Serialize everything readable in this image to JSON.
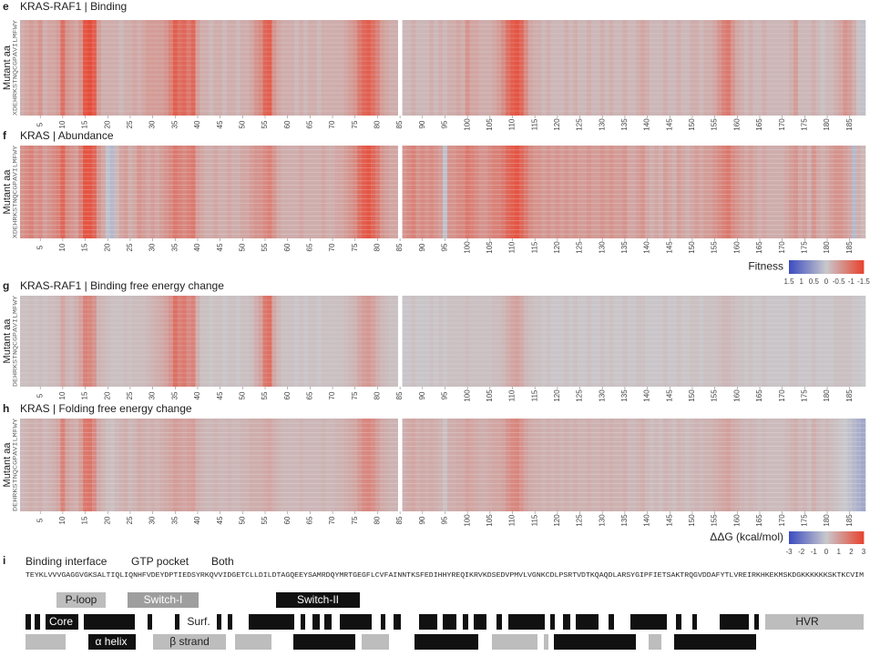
{
  "chart_data": [
    {
      "type": "heatmap",
      "label": "e",
      "title": "KRAS-RAF1 | Binding",
      "ylabel": "Mutant aa",
      "yorder": "XDEHRKSTNQCGPAVILMFWY",
      "xlim": [
        0.5,
        188.5
      ],
      "xticks": [
        5,
        10,
        15,
        20,
        25,
        30,
        35,
        40,
        45,
        50,
        55,
        60,
        65,
        70,
        75,
        80,
        85,
        90,
        95,
        100,
        105,
        110,
        115,
        120,
        125,
        130,
        135,
        140,
        145,
        150,
        155,
        160,
        165,
        170,
        175,
        180,
        185
      ],
      "clim": [
        1.5,
        -1.5
      ],
      "colors": [
        "#3b4cc0",
        "#c8c8cc",
        "#e8432e"
      ],
      "values": [
        -0.3,
        -0.4,
        -0.5,
        -0.4,
        -0.6,
        -0.3,
        -0.4,
        -0.4,
        -0.5,
        -1.0,
        -0.6,
        -0.5,
        -0.4,
        -0.6,
        -1.3,
        -1.4,
        -1.2,
        -0.5,
        -0.3,
        -0.3,
        -0.3,
        -0.3,
        -0.2,
        -0.3,
        -0.3,
        -0.4,
        -0.3,
        -0.4,
        -0.5,
        -0.5,
        -0.5,
        -0.5,
        -0.6,
        -0.8,
        -1.2,
        -1.0,
        -1.1,
        -0.9,
        -1.1,
        -0.5,
        -0.3,
        -0.3,
        -0.2,
        -0.3,
        -0.3,
        -0.2,
        -0.3,
        -0.3,
        -0.2,
        -0.3,
        -0.3,
        -0.4,
        -0.6,
        -0.7,
        -1.1,
        -1.2,
        -0.6,
        -0.4,
        -0.3,
        -0.3,
        -0.3,
        -0.2,
        -0.3,
        -0.2,
        -0.3,
        -0.3,
        -0.2,
        -0.3,
        -0.3,
        -0.3,
        -0.3,
        -0.3,
        -0.4,
        -0.5,
        -0.6,
        -0.9,
        -1.1,
        -1.2,
        -1.0,
        -0.8,
        -0.5,
        -0.4,
        -0.3,
        -0.3,
        null,
        -0.2,
        -0.2,
        -0.3,
        -0.2,
        -0.2,
        -0.2,
        -0.3,
        -0.2,
        -0.3,
        -0.2,
        -0.3,
        -0.3,
        -0.4,
        -0.3,
        -0.6,
        -0.4,
        -0.4,
        -0.3,
        -0.3,
        -0.3,
        -0.4,
        -0.5,
        -0.7,
        -1.0,
        -1.2,
        -1.3,
        -1.1,
        -0.7,
        -0.4,
        -0.3,
        -0.3,
        -0.2,
        -0.3,
        -0.2,
        -0.2,
        -0.2,
        -0.3,
        -0.2,
        -0.3,
        -0.2,
        -0.2,
        -0.3,
        -0.2,
        -0.2,
        -0.3,
        -0.2,
        -0.3,
        -0.2,
        -0.2,
        -0.3,
        -0.2,
        -0.2,
        -0.3,
        -0.4,
        -0.3,
        -0.2,
        -0.2,
        -0.2,
        -0.3,
        -0.2,
        -0.2,
        -0.3,
        -0.2,
        -0.2,
        -0.3,
        -0.3,
        -0.2,
        -0.3,
        -0.3,
        -0.4,
        -0.6,
        -0.8,
        -0.9,
        -0.6,
        -0.4,
        -0.3,
        -0.2,
        -0.3,
        -0.2,
        -0.2,
        -0.3,
        -0.2,
        -0.2,
        -0.2,
        -0.2,
        -0.2,
        -0.3,
        -0.5,
        -0.2,
        -0.2,
        -0.2,
        -0.3,
        -0.2,
        -0.1,
        -0.2,
        -0.2,
        -0.3,
        -0.4,
        -0.6,
        -0.5,
        -0.3,
        -0.1,
        0.1
      ]
    },
    {
      "type": "heatmap",
      "label": "f",
      "title": "KRAS | Abundance",
      "ylabel": "Mutant aa",
      "yorder": "XDEHRKSTNQCGPAVILMFWY",
      "xlim": [
        0.5,
        188.5
      ],
      "xticks": [
        5,
        10,
        15,
        20,
        25,
        30,
        35,
        40,
        45,
        50,
        55,
        60,
        65,
        70,
        75,
        80,
        85,
        90,
        95,
        100,
        105,
        110,
        115,
        120,
        125,
        130,
        135,
        140,
        145,
        150,
        155,
        160,
        165,
        170,
        175,
        180,
        185
      ],
      "clim": [
        1.5,
        -1.5
      ],
      "colors": [
        "#3b4cc0",
        "#c8c8cc",
        "#e8432e"
      ],
      "colorbar": {
        "label": "Fitness",
        "ticks": [
          1.5,
          1,
          0.5,
          0,
          -0.5,
          -1,
          -1.5
        ]
      },
      "values": [
        -0.6,
        -0.7,
        -0.8,
        -0.6,
        -0.7,
        -0.5,
        -0.6,
        -0.7,
        -0.8,
        -1.1,
        -0.7,
        -0.6,
        -0.5,
        -0.8,
        -1.3,
        -1.3,
        -1.1,
        -0.6,
        -0.4,
        0.1,
        0.2,
        -0.2,
        -0.4,
        -0.5,
        -0.3,
        -0.4,
        -0.6,
        -0.5,
        -0.4,
        -0.5,
        -0.4,
        -0.5,
        -0.6,
        -0.7,
        -0.9,
        -0.8,
        -0.7,
        -0.8,
        -0.9,
        -0.5,
        -0.4,
        -0.3,
        -0.3,
        -0.4,
        -0.3,
        -0.3,
        -0.4,
        -0.3,
        -0.3,
        -0.4,
        -0.4,
        -0.5,
        -0.6,
        -0.6,
        -0.7,
        -0.8,
        -0.6,
        -0.4,
        -0.3,
        -0.3,
        -0.3,
        -0.3,
        -0.4,
        -0.3,
        -0.3,
        -0.3,
        -0.3,
        -0.4,
        -0.3,
        -0.3,
        -0.4,
        -0.4,
        -0.5,
        -0.6,
        -0.7,
        -1.0,
        -1.2,
        -1.3,
        -1.1,
        -0.9,
        -0.6,
        -0.5,
        -0.4,
        -0.4,
        null,
        -0.6,
        -0.7,
        -0.8,
        -0.6,
        -0.7,
        -0.6,
        -0.7,
        -0.6,
        -0.5,
        0.1,
        -0.6,
        -0.6,
        -0.7,
        -0.7,
        -0.9,
        -0.8,
        -0.7,
        -0.6,
        -0.6,
        -0.7,
        -0.8,
        -0.8,
        -0.9,
        -1.1,
        -1.2,
        -1.3,
        -1.1,
        -0.9,
        -0.7,
        -0.6,
        -0.6,
        -0.5,
        -0.6,
        -0.5,
        -0.6,
        -0.5,
        -0.6,
        -0.5,
        -0.6,
        -0.5,
        -0.5,
        -0.6,
        -0.5,
        -0.5,
        -0.6,
        -0.5,
        -0.6,
        -0.5,
        -0.5,
        -0.6,
        -0.4,
        -0.4,
        -0.5,
        -0.6,
        -0.4,
        -0.3,
        -0.4,
        -0.3,
        -0.5,
        -0.4,
        -0.3,
        -0.5,
        -0.4,
        -0.3,
        -0.4,
        -0.5,
        -0.4,
        -0.5,
        -0.5,
        -0.6,
        -0.7,
        -0.8,
        -0.9,
        -0.7,
        -0.6,
        -0.5,
        -0.4,
        -0.5,
        -0.4,
        -0.3,
        -0.4,
        -0.3,
        -0.3,
        -0.3,
        -0.3,
        -0.4,
        -0.5,
        -0.6,
        -0.4,
        -0.5,
        -0.3,
        -0.6,
        -0.4,
        -0.3,
        -0.4,
        -0.5,
        -0.6,
        -0.6,
        -0.5,
        -0.4,
        0.2,
        -0.3,
        -0.2
      ]
    },
    {
      "type": "heatmap",
      "label": "g",
      "title": "KRAS-RAF1 | Binding free energy change",
      "ylabel": "Mutant aa",
      "yorder": "DEHRKSTNQCGPAVILMFWY",
      "xlim": [
        0.5,
        188.5
      ],
      "xticks": [
        5,
        10,
        15,
        20,
        25,
        30,
        35,
        40,
        45,
        50,
        55,
        60,
        65,
        70,
        75,
        80,
        85,
        90,
        95,
        100,
        105,
        110,
        115,
        120,
        125,
        130,
        135,
        140,
        145,
        150,
        155,
        160,
        165,
        170,
        175,
        180,
        185
      ],
      "clim": [
        -3,
        3
      ],
      "colors": [
        "#3b4cc0",
        "#c8c8cc",
        "#e8432e"
      ],
      "values": [
        0.2,
        0.2,
        0.3,
        0.2,
        0.3,
        0.2,
        0.3,
        0.3,
        0.4,
        0.8,
        0.5,
        0.4,
        0.6,
        0.9,
        1.6,
        1.5,
        1.2,
        0.5,
        0.4,
        0.3,
        0.2,
        0.2,
        0.2,
        0.3,
        0.2,
        0.3,
        0.3,
        0.3,
        0.4,
        0.5,
        0.6,
        0.7,
        0.9,
        1.2,
        2.0,
        1.6,
        1.8,
        1.4,
        1.6,
        0.6,
        0.2,
        0.2,
        0.1,
        0.2,
        0.2,
        0.1,
        0.2,
        0.2,
        0.1,
        0.2,
        0.2,
        0.3,
        0.6,
        0.9,
        1.8,
        2.0,
        0.8,
        0.4,
        0.2,
        0.2,
        0.2,
        0.1,
        0.2,
        0.1,
        0.2,
        0.2,
        0.1,
        0.2,
        0.2,
        0.2,
        0.2,
        0.2,
        0.3,
        0.4,
        0.5,
        0.8,
        1.0,
        1.1,
        0.9,
        0.6,
        0.4,
        0.3,
        0.2,
        0.2,
        null,
        0.1,
        0.1,
        0.2,
        0.1,
        0.1,
        0.1,
        0.2,
        0.1,
        0.2,
        0.1,
        0.2,
        0.2,
        0.2,
        0.2,
        0.3,
        0.2,
        0.2,
        0.2,
        0.2,
        0.2,
        0.3,
        0.3,
        0.4,
        0.6,
        0.8,
        0.9,
        0.7,
        0.4,
        0.3,
        0.2,
        0.2,
        0.1,
        0.2,
        0.1,
        0.1,
        0.1,
        0.2,
        0.1,
        0.2,
        0.1,
        0.1,
        0.2,
        0.1,
        0.1,
        0.2,
        0.1,
        0.2,
        0.1,
        0.1,
        0.2,
        0.1,
        0.1,
        0.2,
        0.2,
        0.1,
        0.1,
        0.1,
        0.1,
        0.2,
        0.1,
        0.1,
        0.2,
        0.1,
        0.1,
        0.2,
        0.2,
        0.1,
        0.2,
        0.2,
        0.2,
        0.3,
        0.4,
        0.4,
        0.3,
        0.2,
        0.2,
        0.1,
        0.2,
        0.1,
        0.1,
        0.2,
        0.1,
        0.1,
        0.1,
        0.1,
        0.1,
        0.2,
        0.2,
        0.1,
        0.1,
        0.1,
        0.2,
        0.1,
        0.1,
        0.1,
        0.1,
        0.2,
        0.2,
        0.2,
        0.2,
        0.1,
        0.1,
        0.0
      ]
    },
    {
      "type": "heatmap",
      "label": "h",
      "title": "KRAS | Folding free energy change",
      "ylabel": "Mutant aa",
      "yorder": "DEHRKSTNQCGPAVILMFWY",
      "xlim": [
        0.5,
        188.5
      ],
      "xticks": [
        5,
        10,
        15,
        20,
        25,
        30,
        35,
        40,
        45,
        50,
        55,
        60,
        65,
        70,
        75,
        80,
        85,
        90,
        95,
        100,
        105,
        110,
        115,
        120,
        125,
        130,
        135,
        140,
        145,
        150,
        155,
        160,
        165,
        170,
        175,
        180,
        185
      ],
      "clim": [
        -3,
        3
      ],
      "colors": [
        "#3b4cc0",
        "#c8c8cc",
        "#e8432e"
      ],
      "colorbar": {
        "label": "ΔΔG (kcal/mol)",
        "ticks": [
          -3,
          -2,
          -1,
          0,
          1,
          2,
          3
        ]
      },
      "values": [
        0.4,
        0.5,
        0.6,
        0.5,
        0.6,
        0.4,
        0.5,
        0.6,
        0.8,
        1.6,
        0.9,
        0.7,
        0.6,
        1.0,
        1.8,
        1.9,
        1.4,
        0.7,
        0.5,
        0.3,
        0.2,
        0.4,
        0.5,
        0.6,
        0.4,
        0.5,
        0.7,
        0.6,
        0.5,
        0.6,
        0.5,
        0.6,
        0.7,
        0.8,
        1.0,
        0.9,
        0.8,
        0.9,
        1.0,
        0.6,
        0.5,
        0.4,
        0.4,
        0.5,
        0.4,
        0.4,
        0.5,
        0.4,
        0.4,
        0.5,
        0.5,
        0.6,
        0.6,
        0.6,
        0.7,
        0.8,
        0.6,
        0.5,
        0.4,
        0.4,
        0.4,
        0.4,
        0.5,
        0.4,
        0.4,
        0.4,
        0.4,
        0.5,
        0.4,
        0.4,
        0.5,
        0.5,
        0.6,
        0.7,
        0.8,
        1.1,
        1.4,
        1.5,
        1.3,
        1.0,
        0.7,
        0.6,
        0.5,
        0.5,
        null,
        0.6,
        0.7,
        0.8,
        0.6,
        0.7,
        0.6,
        0.7,
        0.6,
        0.5,
        0.2,
        0.6,
        0.6,
        0.7,
        0.7,
        0.9,
        0.8,
        0.7,
        0.6,
        0.6,
        0.7,
        0.8,
        0.8,
        0.9,
        1.2,
        1.4,
        1.5,
        1.2,
        0.9,
        0.7,
        0.6,
        0.6,
        0.5,
        0.6,
        0.5,
        0.6,
        0.5,
        0.6,
        0.5,
        0.6,
        0.5,
        0.5,
        0.6,
        0.5,
        0.5,
        0.6,
        0.5,
        0.6,
        0.5,
        0.5,
        0.6,
        0.4,
        0.4,
        0.5,
        0.6,
        0.4,
        0.3,
        0.4,
        0.3,
        0.5,
        0.4,
        0.3,
        0.5,
        0.4,
        0.3,
        0.4,
        0.5,
        0.4,
        0.5,
        0.5,
        0.6,
        0.7,
        0.8,
        0.9,
        0.7,
        0.6,
        0.5,
        0.4,
        0.5,
        0.4,
        0.3,
        0.4,
        0.3,
        0.3,
        0.3,
        0.3,
        0.4,
        0.5,
        0.6,
        0.4,
        0.5,
        0.3,
        0.6,
        0.4,
        0.3,
        0.4,
        0.3,
        0.2,
        0.1,
        0.0,
        -0.2,
        -0.4,
        -0.6,
        -0.8
      ]
    }
  ],
  "annotation_panel": {
    "label": "i",
    "legend": [
      {
        "name": "Binding interface",
        "color": "#e8432e"
      },
      {
        "name": "GTP pocket",
        "color": "#2a3fb0"
      },
      {
        "name": "Both",
        "color": "#7a2fa0"
      }
    ],
    "sequence": "TEYKLVVVGAGGVGKSALTIQLIQNHFVDEYDPTIEDSYRKQVVIDGETCLLDILDTAGQEEYSAMRDQYMRTGEGFLCVFAINNTKSFEDIHHYREQIKRVKDSEDVPMVLVGNKCDLPSRTVDTKQAQDLARSYGIPFIETSAKTRQGVDDAFYTLVREIRKHKEKMSKDGKKKKKKSKTKCVIM",
    "regions": [
      "P-loop",
      "Switch-I",
      "Switch-II"
    ],
    "core": "Core",
    "surface": "Surf.",
    "hvr": "HVR",
    "helix": "α helix",
    "strand": "β strand"
  }
}
